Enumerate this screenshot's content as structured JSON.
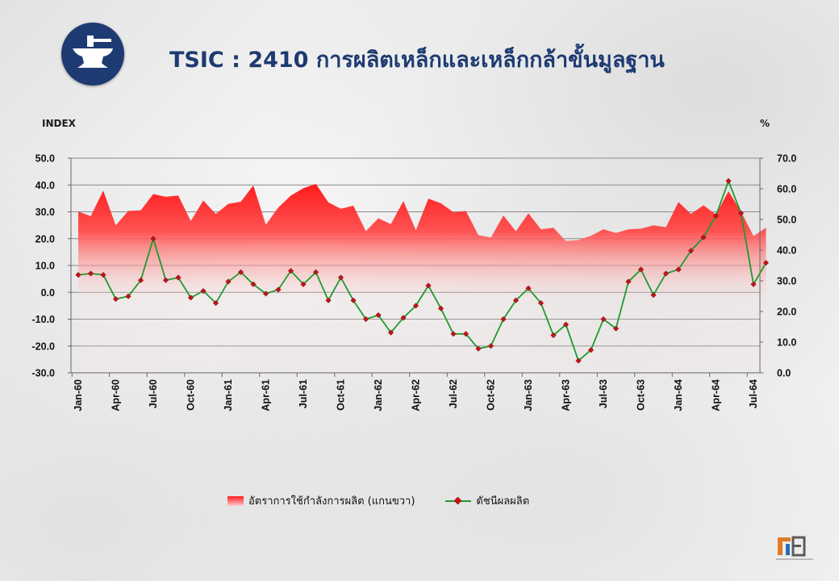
{
  "title": "TSIC : 2410 การผลิตเหล็กและเหล็กกล้าขั้นมูลฐาน",
  "left_axis_unit": "INDEX",
  "right_axis_unit": "%",
  "colors": {
    "area": "#ff1a1a",
    "line": "#1f9a2e",
    "marker": "#c0141a",
    "title": "#1d3a72"
  },
  "chart_data": {
    "type": "line",
    "x_tick_labels": [
      "Jan-60",
      "Apr-60",
      "Jul-60",
      "Oct-60",
      "Jan-61",
      "Apr-61",
      "Jul-61",
      "Oct-61",
      "Jan-62",
      "Apr-62",
      "Jul-62",
      "Oct-62",
      "Jan-63",
      "Apr-63",
      "Jul-63",
      "Oct-63",
      "Jan-64",
      "Apr-64",
      "Jul-64"
    ],
    "x_tick_every": 3,
    "y_left": {
      "min": -30,
      "max": 50,
      "step": 10,
      "labels": [
        "50.0",
        "40.0",
        "30.0",
        "20.0",
        "10.0",
        "0.0",
        "-10.0",
        "-20.0",
        "-30.0"
      ]
    },
    "y_right": {
      "min": 0,
      "max": 70,
      "step": 10,
      "labels": [
        "70.0",
        "60.0",
        "50.0",
        "40.0",
        "30.0",
        "20.0",
        "10.0",
        "0.0"
      ]
    },
    "grid": "horizontal",
    "legend_position": "bottom",
    "series": [
      {
        "name": "อัตราการใช้กำลังการผลิต (แกนขวา)",
        "type": "area",
        "axis": "right",
        "values": [
          52.6,
          51.1,
          59.4,
          48.1,
          52.8,
          53.0,
          58.3,
          57.4,
          57.8,
          49.5,
          56.2,
          51.8,
          55.1,
          55.8,
          61.1,
          48.3,
          53.9,
          57.8,
          60.2,
          61.6,
          55.6,
          53.5,
          54.5,
          46.2,
          50.4,
          48.5,
          56.0,
          46.5,
          56.8,
          55.3,
          52.4,
          52.8,
          44.9,
          44.1,
          51.3,
          46.2,
          52.0,
          46.8,
          47.3,
          43.0,
          43.3,
          44.7,
          46.8,
          45.6,
          46.8,
          47.0,
          48.1,
          47.5,
          55.7,
          51.8,
          54.6,
          51.6,
          59.2,
          52.6,
          44.6,
          47.3
        ]
      },
      {
        "name": "ดัชนีผลผลิต",
        "type": "line",
        "axis": "left",
        "values": [
          6.5,
          7.0,
          6.5,
          -2.5,
          -1.5,
          4.5,
          20.0,
          4.5,
          5.5,
          -2.0,
          0.5,
          -4.0,
          4.0,
          7.5,
          3.0,
          -0.5,
          1.0,
          8.0,
          3.0,
          7.5,
          -3.0,
          5.5,
          -3.0,
          -10.0,
          -8.5,
          -15.0,
          -9.5,
          -5.0,
          2.5,
          -6.0,
          -15.5,
          -15.5,
          -21.0,
          -20.0,
          -10.0,
          -3.0,
          1.5,
          -4.0,
          -16.0,
          -12.0,
          -25.5,
          -21.5,
          -10.0,
          -13.5,
          4.0,
          8.5,
          -1.0,
          7.0,
          8.5,
          15.5,
          20.5,
          28.5,
          41.5,
          29.5,
          3.0,
          11.0
        ]
      }
    ]
  }
}
